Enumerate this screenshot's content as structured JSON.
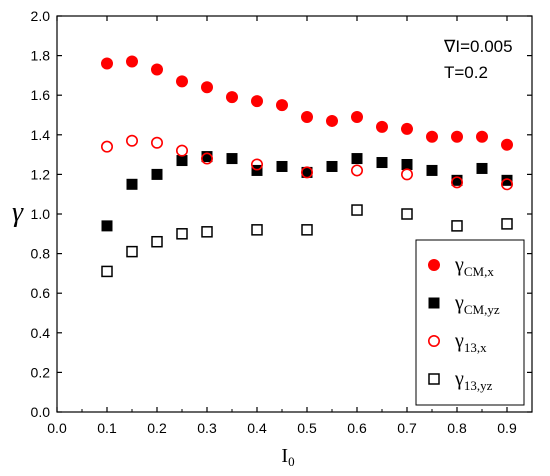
{
  "chart_data": {
    "type": "scatter",
    "title": "",
    "xlabel": "I",
    "xlabel_sub": "0",
    "ylabel": "γ",
    "xlim": [
      0.0,
      0.95
    ],
    "ylim": [
      0.0,
      2.0
    ],
    "xticks": [
      "0.0",
      "0.1",
      "0.2",
      "0.3",
      "0.4",
      "0.5",
      "0.6",
      "0.7",
      "0.8",
      "0.9"
    ],
    "yticks": [
      "0.0",
      "0.2",
      "0.4",
      "0.6",
      "0.8",
      "1.0",
      "1.2",
      "1.4",
      "1.6",
      "1.8",
      "2.0"
    ],
    "grid": false,
    "legend_position": "bottom-right",
    "annotations": [
      "∇I=0.005",
      "T=0.2"
    ],
    "series": [
      {
        "name": "γ",
        "name_sub": "CM,x",
        "marker": "filled-circle",
        "color": "#ff0000",
        "x": [
          0.1,
          0.15,
          0.2,
          0.25,
          0.3,
          0.35,
          0.4,
          0.45,
          0.5,
          0.55,
          0.6,
          0.65,
          0.7,
          0.75,
          0.8,
          0.85,
          0.9
        ],
        "y": [
          1.76,
          1.77,
          1.73,
          1.67,
          1.64,
          1.59,
          1.57,
          1.55,
          1.49,
          1.47,
          1.49,
          1.44,
          1.43,
          1.39,
          1.39,
          1.39,
          1.35
        ]
      },
      {
        "name": "γ",
        "name_sub": "CM,yz",
        "marker": "filled-square",
        "color": "#000000",
        "x": [
          0.1,
          0.15,
          0.2,
          0.25,
          0.3,
          0.35,
          0.4,
          0.45,
          0.5,
          0.55,
          0.6,
          0.65,
          0.7,
          0.75,
          0.8,
          0.85,
          0.9
        ],
        "y": [
          0.94,
          1.15,
          1.2,
          1.27,
          1.29,
          1.28,
          1.22,
          1.24,
          1.21,
          1.24,
          1.28,
          1.26,
          1.25,
          1.22,
          1.17,
          1.23,
          1.17
        ]
      },
      {
        "name": "γ",
        "name_sub": "13,x",
        "marker": "open-circle",
        "color": "#ff0000",
        "x": [
          0.1,
          0.15,
          0.2,
          0.25,
          0.3,
          0.4,
          0.5,
          0.6,
          0.7,
          0.8,
          0.9
        ],
        "y": [
          1.34,
          1.37,
          1.36,
          1.32,
          1.28,
          1.25,
          1.21,
          1.22,
          1.2,
          1.16,
          1.15
        ]
      },
      {
        "name": "γ",
        "name_sub": "13,yz",
        "marker": "open-square",
        "color": "#000000",
        "x": [
          0.1,
          0.15,
          0.2,
          0.25,
          0.3,
          0.4,
          0.5,
          0.6,
          0.7,
          0.8,
          0.9
        ],
        "y": [
          0.71,
          0.81,
          0.86,
          0.9,
          0.91,
          0.92,
          0.92,
          1.02,
          1.0,
          0.94,
          0.95
        ]
      }
    ]
  }
}
